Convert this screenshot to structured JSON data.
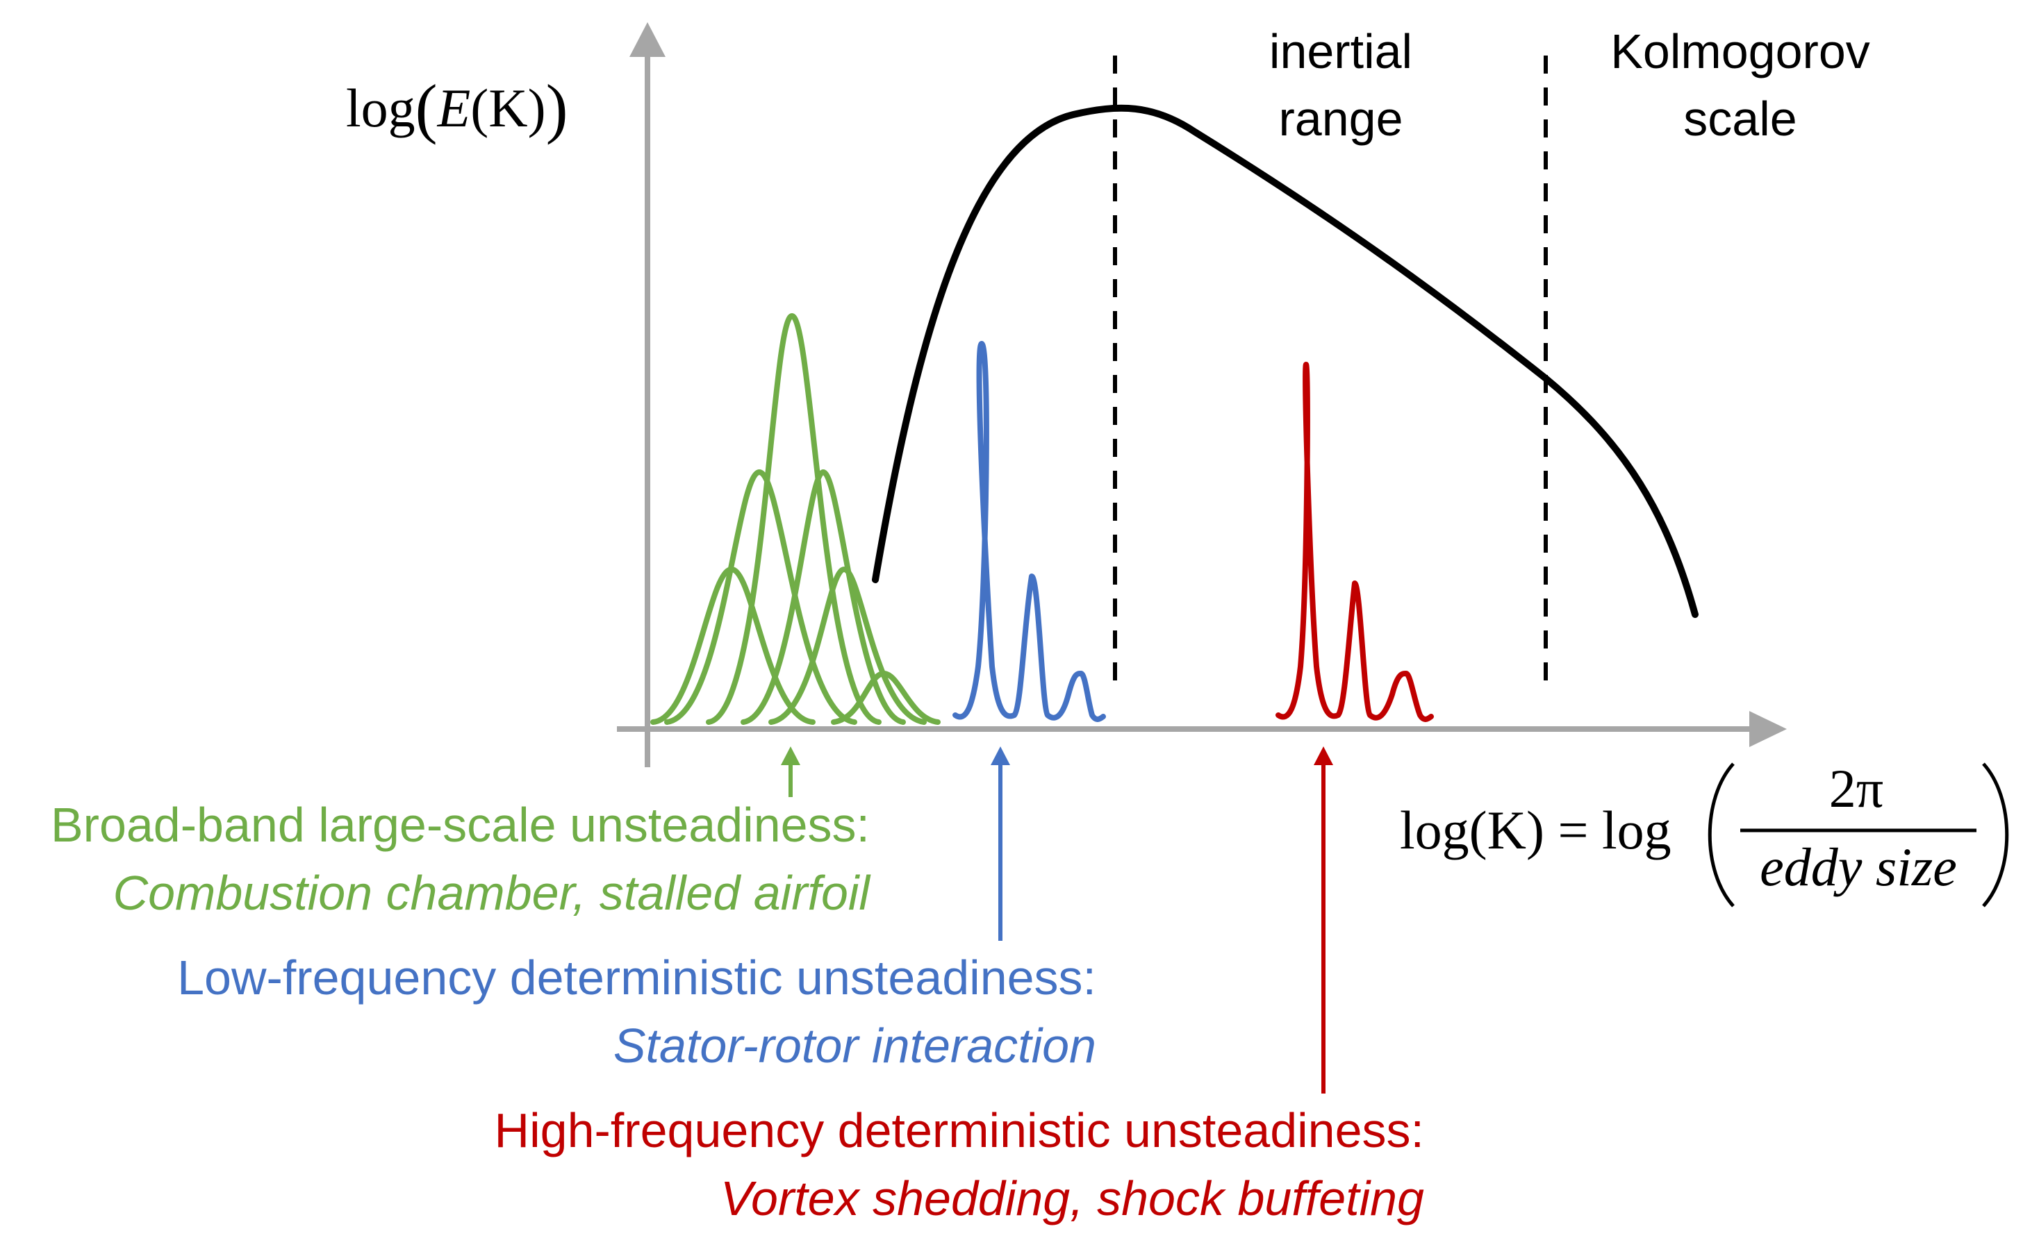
{
  "colors": {
    "axis": "#a6a6a6",
    "spectrum": "#000000",
    "broadband": "#70ad47",
    "low_freq": "#4472c4",
    "high_freq": "#c00000"
  },
  "axes": {
    "y_label_prefix": "log",
    "y_label_var": "E",
    "y_label_arg": "(K)",
    "x_label_left": "log(K) = log",
    "x_label_numerator": "2π",
    "x_label_denominator": "eddy size"
  },
  "regions": {
    "inertial_line1": "inertial",
    "inertial_line2": "range",
    "kolmogorov_line1": "Kolmogorov",
    "kolmogorov_line2": "scale"
  },
  "annotations": {
    "broadband_title": "Broad-band large-scale unsteadiness:",
    "broadband_examples": "Combustion chamber, stalled airfoil",
    "low_freq_title": "Low-frequency deterministic unsteadiness:",
    "low_freq_examples": "Stator-rotor interaction",
    "high_freq_title": "High-frequency deterministic unsteadiness:",
    "high_freq_examples": "Vortex shedding, shock buffeting"
  }
}
